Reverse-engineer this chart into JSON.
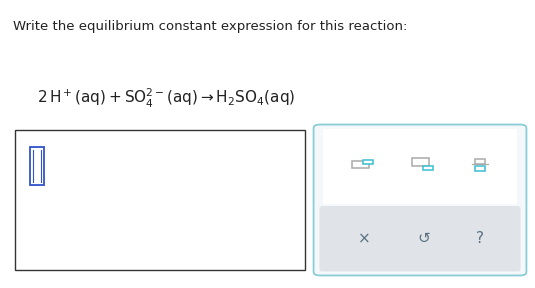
{
  "background_color": "#ffffff",
  "title_text": "Write the equilibrium constant expression for this reaction:",
  "title_fontsize": 9.5,
  "title_color": "#222222",
  "equation_fontsize": 11,
  "left_box_color": "#333333",
  "right_box_border_color": "#89cdd6",
  "teal_color": "#3bbfcf",
  "gray_color": "#999999",
  "icon_gray": "#aaaaaa",
  "bottom_strip_color": "#e0e4e8",
  "bottom_text_color": "#5a7080",
  "cursor_color": "#3355cc"
}
